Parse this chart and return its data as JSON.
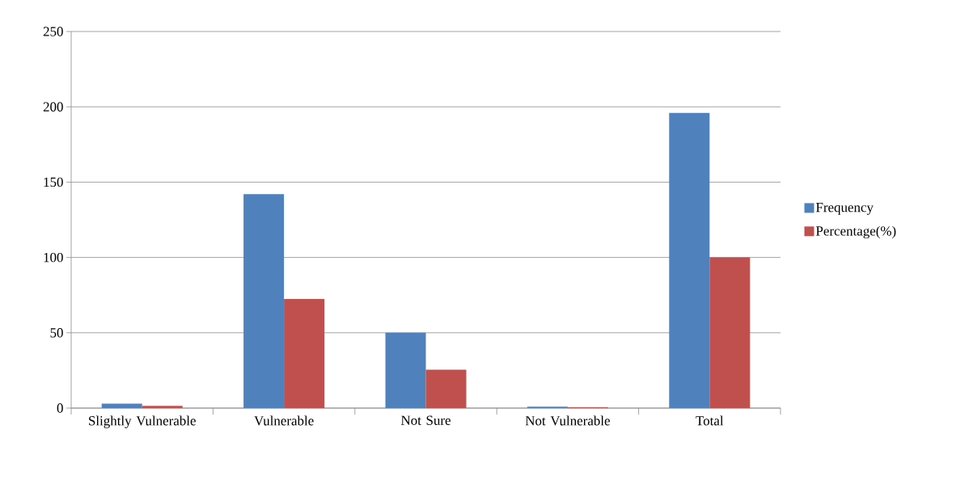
{
  "chart_data": {
    "type": "bar",
    "categories": [
      "Slightly Vulnerable",
      "Vulnerable",
      "Not Sure",
      "Not Vulnerable",
      "Total"
    ],
    "series": [
      {
        "name": "Frequency",
        "color": "#4f81bd",
        "values": [
          3,
          142,
          50,
          1,
          196
        ]
      },
      {
        "name": "Percentage(%)",
        "color": "#c0504d",
        "values": [
          1.5,
          72.4,
          25.5,
          0.5,
          100
        ]
      }
    ],
    "ylim": [
      0,
      250
    ],
    "yticks": [
      0,
      50,
      100,
      150,
      200,
      250
    ],
    "grid": "y",
    "legend": "right"
  }
}
